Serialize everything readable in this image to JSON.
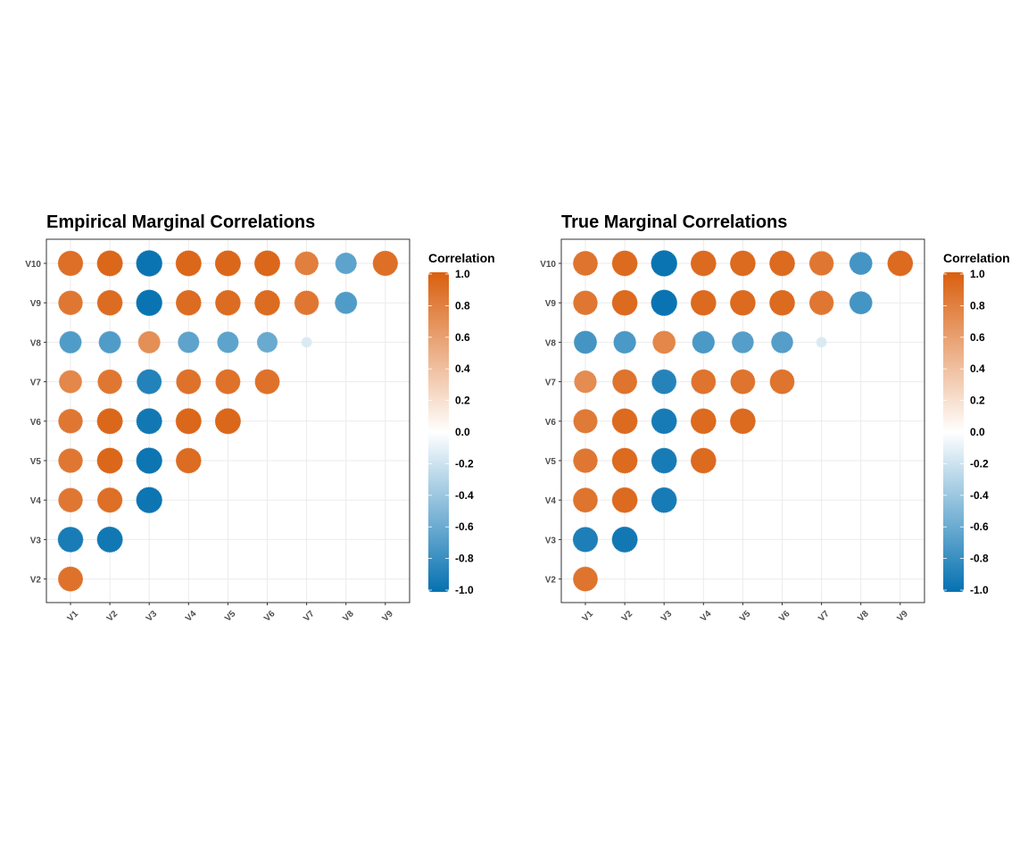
{
  "legend": {
    "title": "Correlation",
    "ticks": [
      "1.0",
      "0.8",
      "0.6",
      "0.4",
      "0.2",
      "0.0",
      "-0.2",
      "-0.4",
      "-0.6",
      "-0.8",
      "-1.0"
    ],
    "colors": {
      "negative": "#0571b0",
      "mid": "#ffffff",
      "positive": "#d95f0e"
    }
  },
  "chart_data": [
    {
      "type": "heatmap",
      "style": "lower-triangle correlation circles",
      "title": "Empirical Marginal Correlations",
      "x": [
        "V1",
        "V2",
        "V3",
        "V4",
        "V5",
        "V6",
        "V7",
        "V8",
        "V9"
      ],
      "y": [
        "V10",
        "V9",
        "V8",
        "V7",
        "V6",
        "V5",
        "V4",
        "V3",
        "V2"
      ],
      "values": [
        [
          0.9,
          0.95,
          -0.98,
          0.95,
          0.95,
          0.95,
          0.8,
          -0.65,
          0.9
        ],
        [
          0.85,
          0.92,
          -0.98,
          0.92,
          0.92,
          0.92,
          0.85,
          -0.7,
          null
        ],
        [
          -0.7,
          -0.7,
          0.7,
          -0.65,
          -0.65,
          -0.6,
          -0.15,
          null,
          null
        ],
        [
          0.75,
          0.85,
          -0.88,
          0.88,
          0.88,
          0.88,
          null,
          null,
          null
        ],
        [
          0.85,
          0.95,
          -0.95,
          0.95,
          0.95,
          null,
          null,
          null,
          null
        ],
        [
          0.85,
          0.95,
          -0.97,
          0.92,
          null,
          null,
          null,
          null,
          null
        ],
        [
          0.85,
          0.9,
          -0.97,
          null,
          null,
          null,
          null,
          null,
          null
        ],
        [
          -0.92,
          -0.95,
          null,
          null,
          null,
          null,
          null,
          null,
          null
        ],
        [
          0.88,
          null,
          null,
          null,
          null,
          null,
          null,
          null,
          null
        ]
      ],
      "limits": [
        -1,
        1
      ]
    },
    {
      "type": "heatmap",
      "style": "lower-triangle correlation circles",
      "title": "True Marginal Correlations",
      "x": [
        "V1",
        "V2",
        "V3",
        "V4",
        "V5",
        "V6",
        "V7",
        "V8",
        "V9"
      ],
      "y": [
        "V10",
        "V9",
        "V8",
        "V7",
        "V6",
        "V5",
        "V4",
        "V3",
        "V2"
      ],
      "values": [
        [
          0.87,
          0.93,
          -0.98,
          0.93,
          0.93,
          0.93,
          0.85,
          -0.75,
          0.93
        ],
        [
          0.85,
          0.93,
          -0.98,
          0.93,
          0.93,
          0.93,
          0.85,
          -0.75,
          null
        ],
        [
          -0.75,
          -0.72,
          0.75,
          -0.72,
          -0.68,
          -0.68,
          -0.15,
          null,
          null
        ],
        [
          0.72,
          0.87,
          -0.87,
          0.87,
          0.87,
          0.87,
          null,
          null,
          null
        ],
        [
          0.83,
          0.93,
          -0.93,
          0.93,
          0.93,
          null,
          null,
          null,
          null
        ],
        [
          0.85,
          0.93,
          -0.93,
          0.93,
          null,
          null,
          null,
          null,
          null
        ],
        [
          0.87,
          0.93,
          -0.93,
          null,
          null,
          null,
          null,
          null,
          null
        ],
        [
          -0.9,
          -0.95,
          null,
          null,
          null,
          null,
          null,
          null,
          null
        ],
        [
          0.87,
          null,
          null,
          null,
          null,
          null,
          null,
          null,
          null
        ]
      ],
      "limits": [
        -1,
        1
      ]
    }
  ]
}
